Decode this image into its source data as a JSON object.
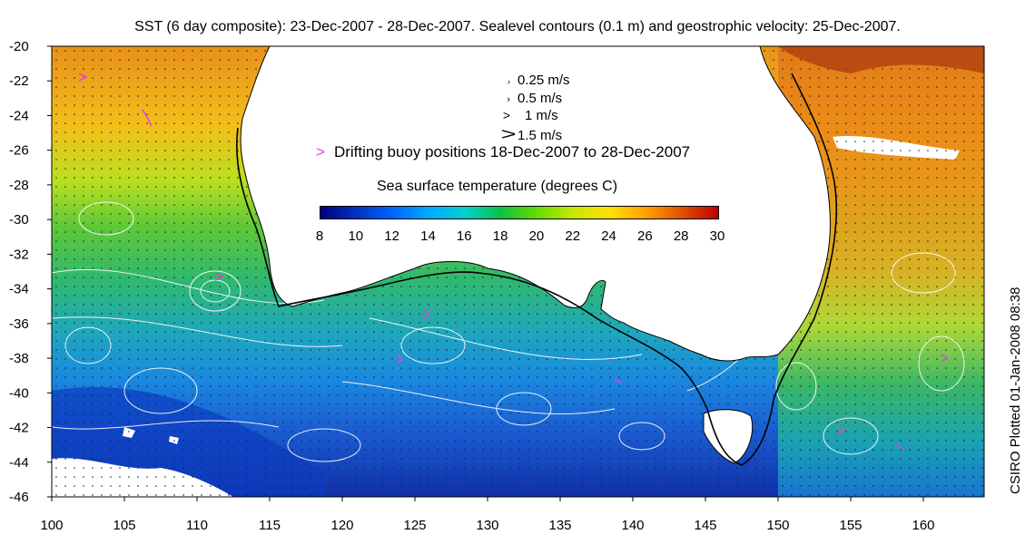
{
  "title": "SST (6 day composite): 23-Dec-2007 - 28-Dec-2007. Sealevel contours (0.1 m) and geostrophic velocity: 25-Dec-2007.",
  "credit": "CSIRO Plotted 01-Jan-2008 08:38",
  "axes": {
    "x_ticks": [
      "100",
      "105",
      "110",
      "115",
      "120",
      "125",
      "130",
      "135",
      "140",
      "145",
      "150",
      "155",
      "160"
    ],
    "y_ticks": [
      "-20",
      "-22",
      "-24",
      "-26",
      "-28",
      "-30",
      "-32",
      "-34",
      "-36",
      "-38",
      "-40",
      "-42",
      "-44",
      "-46"
    ]
  },
  "legend": {
    "velocity": [
      {
        "label": "0.25 m/s",
        "symbol": "›"
      },
      {
        "label": "0.5 m/s",
        "symbol": "›"
      },
      {
        "label": "1 m/s",
        "symbol": ">"
      },
      {
        "label": "1.5 m/s",
        "symbol": ">"
      }
    ],
    "buoy_symbol": ">",
    "buoy_label": "Drifting buoy positions 18-Dec-2007 to 28-Dec-2007"
  },
  "colorbar": {
    "title": "Sea surface temperature (degrees C)",
    "ticks": [
      "8",
      "10",
      "12",
      "14",
      "16",
      "18",
      "20",
      "22",
      "24",
      "26",
      "28",
      "30"
    ],
    "colors": [
      "#000080",
      "#0033c0",
      "#0066ff",
      "#00aaff",
      "#00d0d0",
      "#10c040",
      "#66dd00",
      "#c8e800",
      "#ffe000",
      "#ffa000",
      "#e05000",
      "#c00000"
    ]
  },
  "colors": {
    "land": "#ffffff",
    "contour": "#ffffff",
    "shelf_line": "#000000",
    "buoy": "#e040e0"
  }
}
